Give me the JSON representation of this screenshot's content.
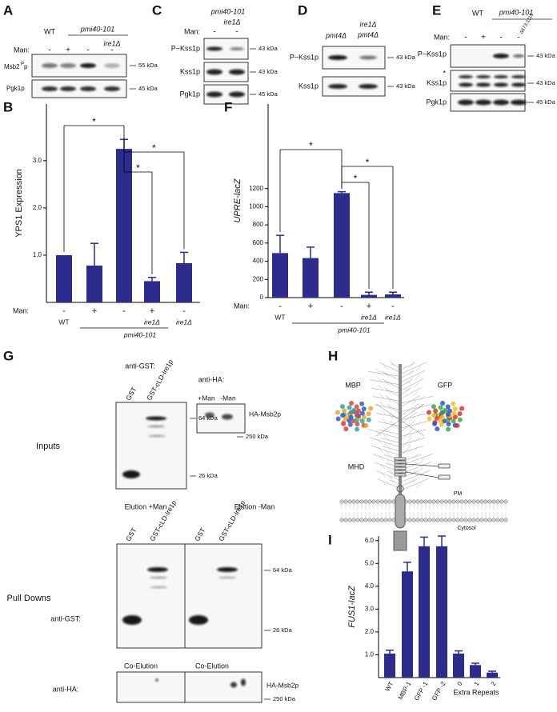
{
  "figure": {
    "panel_a": {
      "letter": "A",
      "wt": "WT",
      "strain": "pmi40-101",
      "mutant": "ire1Δ",
      "man_label": "Man:",
      "man": [
        "-",
        "+",
        "-",
        "-"
      ],
      "rows": [
        "Msb2",
        "Pgk1p"
      ],
      "row1_sup": "P",
      "row1_suffix": "p",
      "sizes": [
        "55 kDa",
        "45 kDa"
      ]
    },
    "panel_c": {
      "letter": "C",
      "strain": "pmi40-101",
      "mutant": "ire1Δ",
      "man_label": "Man:",
      "man": [
        "-",
        "-"
      ],
      "rows": [
        "P~Kss1p",
        "Kss1p",
        "Pgk1p"
      ],
      "sizes": [
        "43 kDa",
        "43 kDa",
        "45 kDa"
      ]
    },
    "panel_d": {
      "letter": "D",
      "lanes": [
        "pmt4Δ",
        "ire1Δ",
        "pmt4Δ"
      ],
      "rows": [
        "P~Kss1p",
        "Kss1p"
      ],
      "sizes": [
        "43 kDa",
        "43 kDa"
      ]
    },
    "panel_e": {
      "letter": "E",
      "wt": "WT",
      "strain": "pmi40-101",
      "man_label": "Man:",
      "man": [
        "-",
        "+",
        "-",
        "-"
      ],
      "deletion": "Δ673-1115",
      "rows": [
        "P~Kss1p",
        "Kss1p",
        "Pgk1p"
      ],
      "star": "*",
      "sizes": [
        "43 kDa",
        "43 kDa",
        "45 kDa"
      ]
    },
    "panel_g": {
      "letter": "G",
      "anti_gst": "anti-GST:",
      "lanes": [
        "GST",
        "GST-cLD-Ire1p"
      ],
      "anti_ha": "anti-HA:",
      "ha_lanes": [
        "+Man",
        "-Man"
      ],
      "ha_protein": "HA-Msb2p",
      "sizes": [
        "64 kDa",
        "26 kDa",
        "250 kDa"
      ],
      "inputs": "Inputs",
      "elution_plus": "Elution +Man",
      "elution_minus": "Elution -Man",
      "pull_downs": "Pull Downs",
      "pd_anti_gst": "anti-GST:",
      "pd_anti_ha": "anti-HA:",
      "co_elution": [
        "Co-Elution",
        "Co-Elution"
      ],
      "pd_lanes": [
        "GST",
        "GST-cLD-Ire1p",
        "GST",
        "GST-cLD-Ire1p"
      ],
      "pd_ha_protein": "HA-Msb2p",
      "pd_sizes": [
        "64 kDa",
        "26 kDa",
        "250 kDa"
      ]
    },
    "panel_h": {
      "letter": "H",
      "labels": [
        "MBP",
        "GFP",
        "MHD",
        "PM",
        "Cytosol"
      ]
    }
  },
  "chart_data": [
    {
      "type": "bar",
      "letter": "B",
      "ylabel": "YPS1 Expression",
      "x_row_label": "Man:",
      "categories": [
        "-",
        "+",
        "-",
        "+",
        "-"
      ],
      "genotypes": [
        "WT",
        null,
        null,
        "ire1Δ",
        "ire1Δ"
      ],
      "group": "pmi40-101",
      "values": [
        1.0,
        0.78,
        3.25,
        0.45,
        0.83
      ],
      "errors": [
        0,
        0.47,
        0.2,
        0.08,
        0.23
      ],
      "color": "#2b2c8c",
      "ylim": [
        0,
        4.2
      ],
      "yticks": [
        {
          "value": 1,
          "label": "1.0"
        },
        {
          "value": 2,
          "label": "2.0"
        },
        {
          "value": 3,
          "label": "3.0"
        }
      ],
      "annotations": [
        "*",
        "*",
        "*"
      ]
    },
    {
      "type": "bar",
      "letter": "F",
      "ylabel": "UPRE-lacZ",
      "x_row_label": "Man:",
      "categories": [
        "-",
        "+",
        "-",
        "+",
        "-"
      ],
      "genotypes": [
        "WT",
        null,
        null,
        "ire1Δ",
        "ire1Δ"
      ],
      "group": "pmi40-101",
      "values": [
        490,
        435,
        1150,
        30,
        35
      ],
      "errors": [
        195,
        120,
        15,
        30,
        25
      ],
      "color": "#2b2c8c",
      "ylim": [
        0,
        2130
      ],
      "yticks": [
        0,
        200,
        400,
        600,
        800,
        1000,
        1200
      ],
      "annotations": [
        "*",
        "*",
        "*"
      ]
    },
    {
      "type": "bar",
      "letter": "I",
      "ylabel": "FUS1-lacZ",
      "xlabel": "Extra Repeats",
      "categories": [
        "WT",
        "MBP-1",
        "GFP -1",
        "GFP -2",
        "0",
        "1",
        "2"
      ],
      "values": [
        1.05,
        4.65,
        5.75,
        5.75,
        1.05,
        0.55,
        0.22
      ],
      "errors": [
        0.15,
        0.4,
        0.4,
        0.45,
        0.12,
        0.08,
        0.06
      ],
      "color": "#2b2c8c",
      "ylim": [
        0,
        6.2
      ],
      "yticks": [
        {
          "value": 1,
          "label": "1.0"
        },
        {
          "value": 2,
          "label": "2.0"
        },
        {
          "value": 3,
          "label": "3.0"
        },
        {
          "value": 4,
          "label": "4.0"
        },
        {
          "value": 5,
          "label": "5.0"
        },
        {
          "value": 6,
          "label": "6.0"
        }
      ]
    }
  ]
}
